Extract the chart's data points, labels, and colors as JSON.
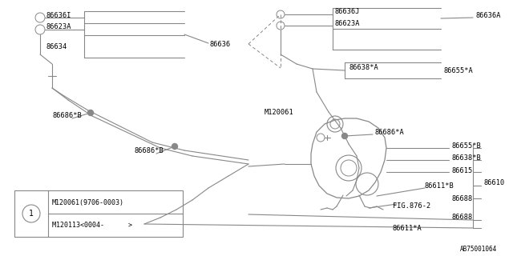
{
  "bg_color": "#ffffff",
  "line_color": "#888888",
  "text_color": "#000000",
  "watermark": "AB75001064",
  "note_line1": "M120061(9706-0003)",
  "note_line2": "M120113<0004-      >"
}
